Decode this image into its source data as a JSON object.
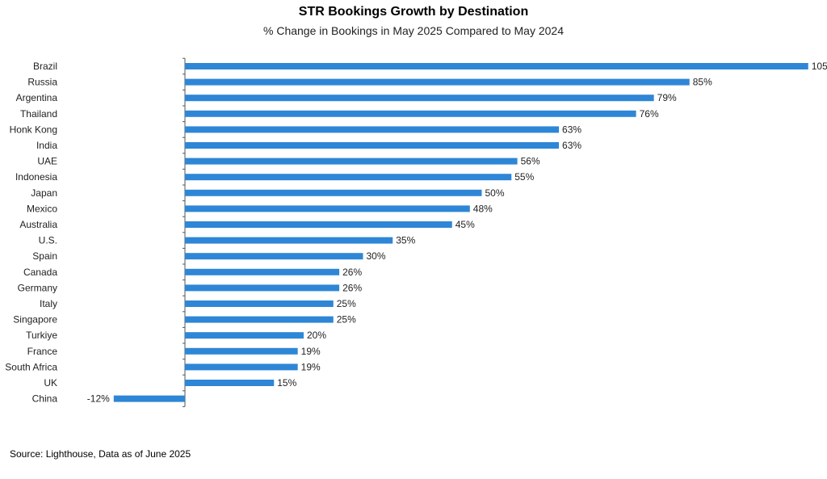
{
  "chart_data": {
    "type": "bar",
    "orientation": "horizontal",
    "title": "STR Bookings Growth by Destination",
    "subtitle": "% Change in Bookings in May 2025 Compared to May 2024",
    "categories": [
      "Brazil",
      "Russia",
      "Argentina",
      "Thailand",
      "Honk Kong",
      "India",
      "UAE",
      "Indonesia",
      "Japan",
      "Mexico",
      "Australia",
      "U.S.",
      "Spain",
      "Canada",
      "Germany",
      "Italy",
      "Singapore",
      "Turkiye",
      "France",
      "South Africa",
      "UK",
      "China"
    ],
    "values": [
      105,
      85,
      79,
      76,
      63,
      63,
      56,
      55,
      50,
      48,
      45,
      35,
      30,
      26,
      26,
      25,
      25,
      20,
      19,
      19,
      15,
      -12
    ],
    "value_labels": [
      "105%",
      "85%",
      "79%",
      "76%",
      "63%",
      "63%",
      "56%",
      "55%",
      "50%",
      "48%",
      "45%",
      "35%",
      "30%",
      "26%",
      "26%",
      "25%",
      "25%",
      "20%",
      "19%",
      "19%",
      "15%",
      "-12%"
    ],
    "xlim": [
      -12,
      105
    ],
    "grid": false,
    "legend": "none",
    "bar_color": "#2e86d6"
  },
  "source": "Source: Lighthouse, Data as of June 2025"
}
